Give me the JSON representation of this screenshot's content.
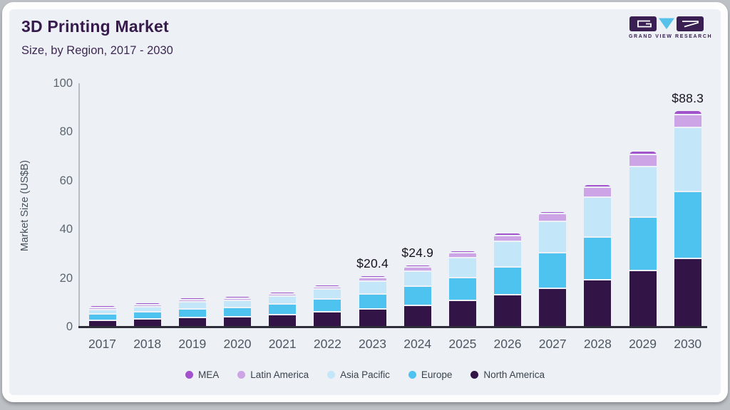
{
  "header": {
    "title": "3D Printing Market",
    "subtitle": "Size, by Region, 2017 - 2030"
  },
  "logo": {
    "text": "GRAND VIEW RESEARCH"
  },
  "colors": {
    "card_background": "#edf1f6",
    "card_border": "#fdfdfe",
    "outer_background": "#bdc1c5",
    "axis_line": "#2d2e3a",
    "y_axis_line": "#b7bdc5",
    "title_text": "#371a4c",
    "value_label_text": "#14141e"
  },
  "chart_data": {
    "type": "bar",
    "stacked": true,
    "title": "3D Printing Market",
    "subtitle": "Size, by Region, 2017 - 2030",
    "xlabel": "",
    "ylabel": "Market Size (US$B)",
    "ylim": [
      0,
      100
    ],
    "yticks": [
      0,
      20,
      40,
      60,
      80,
      100
    ],
    "grid": false,
    "legend_position": "bottom",
    "categories": [
      "2017",
      "2018",
      "2019",
      "2020",
      "2021",
      "2022",
      "2023",
      "2024",
      "2025",
      "2026",
      "2027",
      "2028",
      "2029",
      "2030"
    ],
    "series": [
      {
        "name": "MEA",
        "color": "#a253cc",
        "values": [
          0.3,
          0.3,
          0.4,
          0.4,
          0.4,
          0.5,
          0.6,
          0.7,
          0.8,
          1.0,
          1.1,
          1.3,
          1.4,
          1.7
        ]
      },
      {
        "name": "Latin America",
        "color": "#cda4e6",
        "values": [
          0.5,
          0.7,
          0.7,
          0.7,
          0.9,
          1.1,
          1.4,
          1.8,
          2.0,
          2.5,
          3.2,
          3.9,
          4.9,
          5.2
        ]
      },
      {
        "name": "Asia Pacific",
        "color": "#c3e7f8",
        "values": [
          1.9,
          2.2,
          2.7,
          2.9,
          3.3,
          4.1,
          5.2,
          6.2,
          8.2,
          10.3,
          12.9,
          16.4,
          20.8,
          26.3
        ]
      },
      {
        "name": "Europe",
        "color": "#4ec3ef",
        "values": [
          2.6,
          2.9,
          3.5,
          3.7,
          4.3,
          5.2,
          6.2,
          7.7,
          9.4,
          11.6,
          14.4,
          17.7,
          21.9,
          27.7
        ]
      },
      {
        "name": "North America",
        "color": "#321447",
        "values": [
          3.0,
          3.4,
          4.0,
          4.2,
          4.9,
          5.9,
          7.0,
          8.5,
          10.3,
          12.5,
          15.3,
          18.6,
          22.5,
          27.4
        ]
      }
    ],
    "stack_order_bottom_to_top": [
      "North America",
      "Europe",
      "Asia Pacific",
      "Latin America",
      "MEA"
    ],
    "bar_labels": {
      "2023": "$20.4",
      "2024": "$24.9",
      "2030": "$88.3"
    }
  }
}
